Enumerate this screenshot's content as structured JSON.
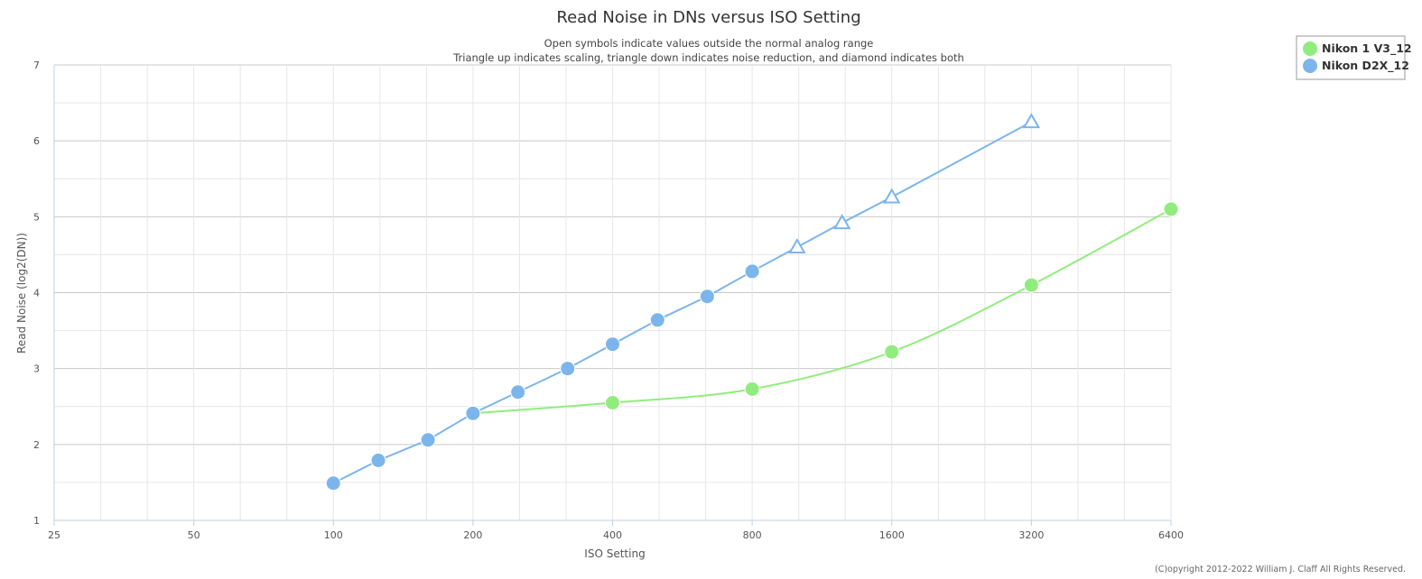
{
  "chart_data": {
    "type": "line",
    "title": "Read Noise in DNs versus ISO Setting",
    "subtitle_lines": [
      "Open symbols indicate values outside the normal analog range",
      "Triangle up indicates scaling, triangle down indicates noise reduction, and diamond indicates both"
    ],
    "xlabel": "ISO Setting",
    "ylabel": "Read Noise (log2(DN))",
    "x_scale": "log2",
    "xlim": [
      25,
      6400
    ],
    "ylim": [
      1,
      7
    ],
    "x_ticks": [
      "25",
      "50",
      "100",
      "200",
      "400",
      "800",
      "1600",
      "3200",
      "6400"
    ],
    "y_ticks": [
      "1",
      "2",
      "3",
      "4",
      "5",
      "6",
      "7"
    ],
    "grid": true,
    "legend_position": "top-right",
    "series": [
      {
        "name": "Nikon 1 V3_12",
        "color": "#90ed7d",
        "smooth": true,
        "points": [
          {
            "x": 200,
            "y": 2.41,
            "marker": "circle"
          },
          {
            "x": 400,
            "y": 2.55,
            "marker": "circle"
          },
          {
            "x": 800,
            "y": 2.73,
            "marker": "circle"
          },
          {
            "x": 1600,
            "y": 3.22,
            "marker": "circle"
          },
          {
            "x": 3200,
            "y": 4.1,
            "marker": "circle"
          },
          {
            "x": 6400,
            "y": 5.1,
            "marker": "circle"
          }
        ]
      },
      {
        "name": "Nikon D2X_12",
        "color": "#7cb5ec",
        "smooth": false,
        "points": [
          {
            "x": 100,
            "y": 1.49,
            "marker": "circle"
          },
          {
            "x": 125,
            "y": 1.79,
            "marker": "circle"
          },
          {
            "x": 160,
            "y": 2.06,
            "marker": "circle"
          },
          {
            "x": 200,
            "y": 2.41,
            "marker": "circle"
          },
          {
            "x": 250,
            "y": 2.69,
            "marker": "circle"
          },
          {
            "x": 320,
            "y": 3.0,
            "marker": "circle"
          },
          {
            "x": 400,
            "y": 3.32,
            "marker": "circle"
          },
          {
            "x": 500,
            "y": 3.64,
            "marker": "circle"
          },
          {
            "x": 640,
            "y": 3.95,
            "marker": "circle"
          },
          {
            "x": 800,
            "y": 4.28,
            "marker": "circle"
          },
          {
            "x": 1000,
            "y": 4.6,
            "marker": "triangle-up-open"
          },
          {
            "x": 1250,
            "y": 4.92,
            "marker": "triangle-up-open"
          },
          {
            "x": 1600,
            "y": 5.26,
            "marker": "triangle-up-open"
          },
          {
            "x": 3200,
            "y": 6.25,
            "marker": "triangle-up-open"
          }
        ]
      }
    ]
  },
  "credit": "(C)opyright 2012-2022 William J. Claff All Rights Reserved."
}
